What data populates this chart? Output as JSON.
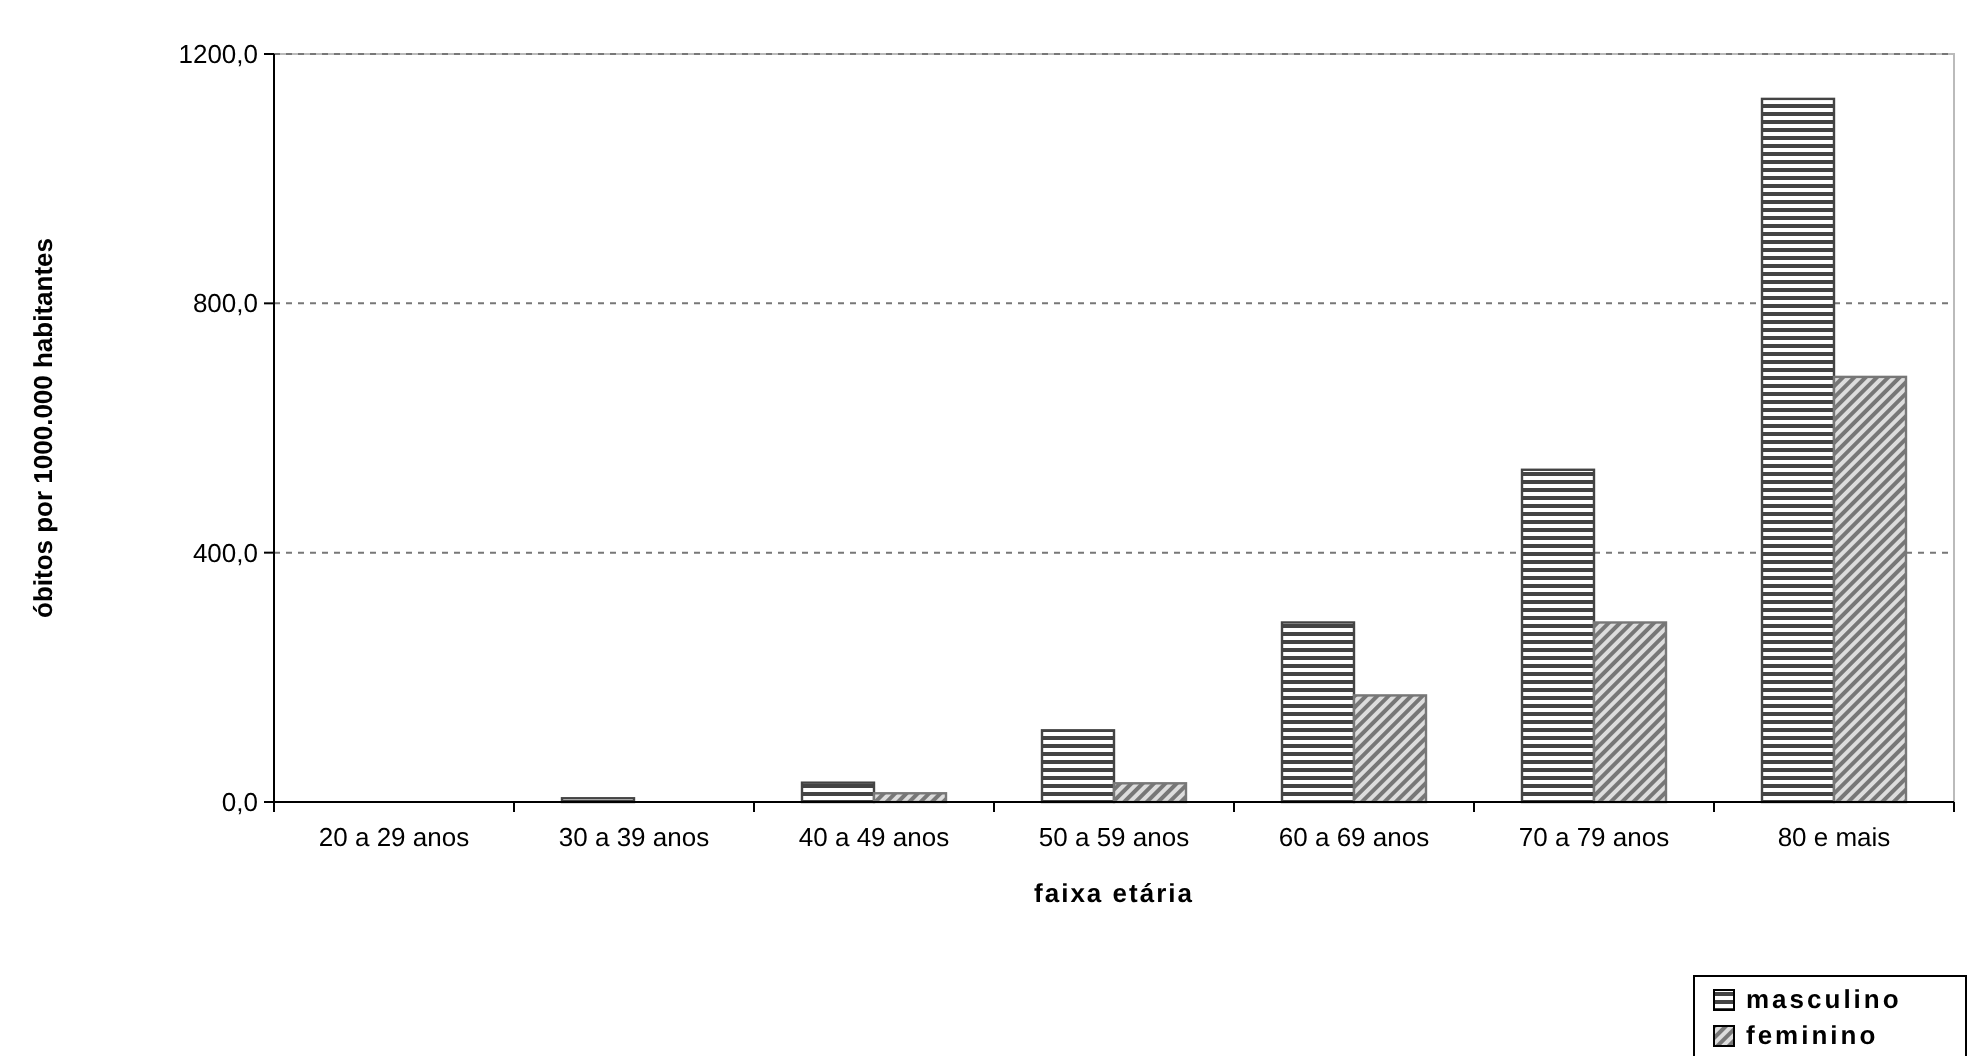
{
  "chart_data": {
    "type": "bar",
    "xlabel": "faixa etária",
    "ylabel": "óbitos por 1000.000 habitantes",
    "categories": [
      "20 a 29 anos",
      "30 a 39 anos",
      "40 a 49 anos",
      "50 a 59 anos",
      "60 a 69 anos",
      "70 a 79 anos",
      "80 e mais"
    ],
    "series": [
      {
        "name": "masculino",
        "color": "#444444",
        "values": [
          0,
          6,
          31,
          115,
          288,
          533,
          1128
        ]
      },
      {
        "name": "feminino",
        "color": "#777777",
        "values": [
          0,
          0,
          14,
          30,
          171,
          288,
          682
        ]
      }
    ],
    "ylim": [
      0,
      1200
    ],
    "yticks": [
      {
        "value": 0,
        "label": "0,0"
      },
      {
        "value": 400,
        "label": "400,0"
      },
      {
        "value": 800,
        "label": "800,0"
      },
      {
        "value": 1200,
        "label": "1200,0"
      }
    ],
    "grid": "y",
    "legend": "bottom right"
  }
}
